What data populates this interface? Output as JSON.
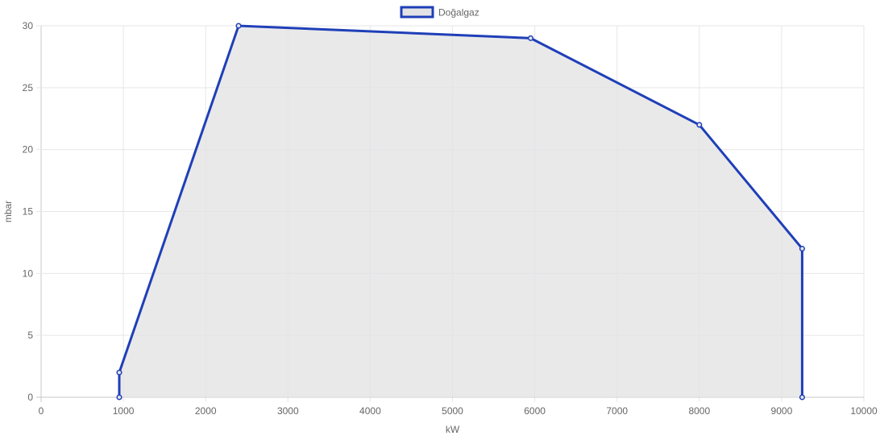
{
  "chart_data": {
    "type": "area",
    "title": "",
    "xlabel": "kW",
    "ylabel": "mbar",
    "xlim": [
      0,
      10000
    ],
    "ylim": [
      0,
      30
    ],
    "x_ticks": [
      0,
      1000,
      2000,
      3000,
      4000,
      5000,
      6000,
      7000,
      8000,
      9000,
      10000
    ],
    "y_ticks": [
      0,
      5,
      10,
      15,
      20,
      25,
      30
    ],
    "grid": true,
    "legend_position": "top-center",
    "series": [
      {
        "name": "Doğalgaz",
        "color": "#1f3fb8",
        "fill_color": "#e3e3e5",
        "points": [
          {
            "x": 950,
            "y": 0
          },
          {
            "x": 950,
            "y": 2
          },
          {
            "x": 2400,
            "y": 30
          },
          {
            "x": 5950,
            "y": 29
          },
          {
            "x": 8000,
            "y": 22
          },
          {
            "x": 9250,
            "y": 12
          },
          {
            "x": 9250,
            "y": 0
          }
        ]
      }
    ]
  }
}
